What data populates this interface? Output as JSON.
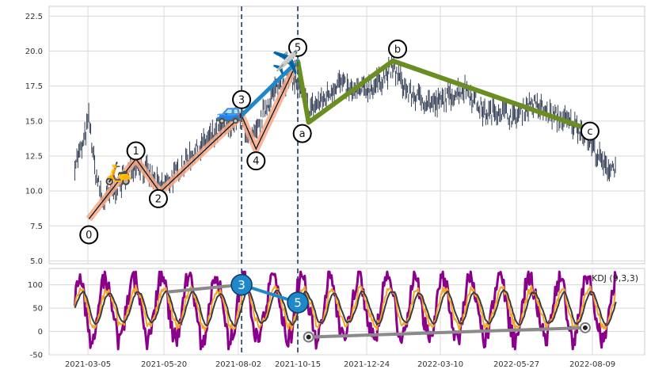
{
  "chart_data": [
    {
      "type": "candlestick",
      "title": "",
      "ylim": [
        4.8,
        23.2
      ],
      "y_ticks": [
        "5.0",
        "7.5",
        "10.0",
        "12.5",
        "15.0",
        "17.5",
        "20.0",
        "22.5"
      ],
      "x_ticks": [
        "2021-03-05",
        "2021-05-20",
        "2021-08-02",
        "2021-10-15",
        "2021-12-24",
        "2022-03-10",
        "2022-05-27",
        "2022-08-09"
      ],
      "grid": true,
      "candle_color": "#1f2a44",
      "price_path": [
        [
          "2021-02-20",
          12.0
        ],
        [
          "2021-02-28",
          13.2
        ],
        [
          "2021-03-06",
          15.2
        ],
        [
          "2021-03-12",
          11.5
        ],
        [
          "2021-03-20",
          9.2
        ],
        [
          "2021-03-28",
          9.8
        ],
        [
          "2021-04-10",
          10.8
        ],
        [
          "2021-04-22",
          12.2
        ],
        [
          "2021-05-05",
          11.2
        ],
        [
          "2021-05-16",
          10.2
        ],
        [
          "2021-05-30",
          11.0
        ],
        [
          "2021-06-15",
          12.5
        ],
        [
          "2021-07-01",
          13.5
        ],
        [
          "2021-07-15",
          14.3
        ],
        [
          "2021-07-28",
          14.8
        ],
        [
          "2021-08-06",
          15.3
        ],
        [
          "2021-08-16",
          13.5
        ],
        [
          "2021-08-24",
          14.0
        ],
        [
          "2021-09-05",
          16.0
        ],
        [
          "2021-09-20",
          17.5
        ],
        [
          "2021-10-05",
          18.2
        ],
        [
          "2021-10-12",
          17.8
        ],
        [
          "2021-10-20",
          17.0
        ],
        [
          "2021-10-26",
          15.8
        ],
        [
          "2021-11-10",
          16.5
        ],
        [
          "2021-11-25",
          17.8
        ],
        [
          "2021-12-10",
          17.0
        ],
        [
          "2022-01-01",
          17.5
        ],
        [
          "2022-01-20",
          18.8
        ],
        [
          "2022-02-05",
          17.0
        ],
        [
          "2022-02-20",
          16.5
        ],
        [
          "2022-03-05",
          16.2
        ],
        [
          "2022-03-20",
          16.8
        ],
        [
          "2022-04-05",
          17.4
        ],
        [
          "2022-04-25",
          15.5
        ],
        [
          "2022-05-10",
          15.8
        ],
        [
          "2022-05-25",
          15.2
        ],
        [
          "2022-06-10",
          16.3
        ],
        [
          "2022-07-01",
          15.4
        ],
        [
          "2022-07-20",
          14.8
        ],
        [
          "2022-08-02",
          14.2
        ],
        [
          "2022-08-12",
          12.8
        ],
        [
          "2022-08-22",
          11.6
        ],
        [
          "2022-09-01",
          11.8
        ]
      ],
      "wave_points": [
        {
          "label": "0",
          "date": "2021-03-06",
          "price": 8.0
        },
        {
          "label": "1",
          "date": "2021-04-22",
          "price": 12.3
        },
        {
          "label": "2",
          "date": "2021-05-16",
          "price": 9.9
        },
        {
          "label": "3",
          "date": "2021-08-06",
          "price": 15.4
        },
        {
          "label": "4",
          "date": "2021-08-24",
          "price": 13.0
        },
        {
          "label": "5",
          "date": "2021-10-15",
          "price": 19.3
        },
        {
          "label": "a",
          "date": "2021-10-26",
          "price": 14.9
        },
        {
          "label": "b",
          "date": "2022-01-20",
          "price": 19.3
        },
        {
          "label": "c",
          "date": "2022-08-02",
          "price": 14.5
        }
      ],
      "impulse_color": "#f4a98a",
      "corrective_color": "#6b8e23",
      "extension_color": "#1e88c8",
      "vlines": [
        "2021-08-06",
        "2021-10-15"
      ],
      "vline_color": "#4a6078",
      "icons": [
        {
          "name": "scooter",
          "glyph": "🛵",
          "date": "2021-04-04",
          "price": 11.3
        },
        {
          "name": "car",
          "glyph": "🚙",
          "date": "2021-07-24",
          "price": 15.7
        },
        {
          "name": "airplane",
          "glyph": "✈️",
          "date": "2021-09-30",
          "price": 19.2
        }
      ]
    },
    {
      "type": "line",
      "label": "KDJ (9,3,3)",
      "ylim": [
        -50,
        135
      ],
      "y_ticks": [
        "-50",
        "0",
        "50",
        "100"
      ],
      "grid": true,
      "series": [
        {
          "name": "K",
          "color": "#f5a623",
          "width": 2
        },
        {
          "name": "D",
          "color": "#3b3b3b",
          "width": 2
        },
        {
          "name": "J",
          "color": "#8b008b",
          "width": 3
        }
      ],
      "divergence_bear": {
        "color": "#8a8a8a",
        "points": [
          [
            "2021-05-25",
            85
          ],
          [
            "2021-08-06",
            100
          ],
          [
            "2021-10-15",
            62
          ]
        ]
      },
      "divergence_bull": {
        "color": "#8a8a8a",
        "points": [
          [
            "2021-10-26",
            -12
          ],
          [
            "2022-08-02",
            8
          ]
        ]
      },
      "bear_labels": [
        "3",
        "5"
      ],
      "marker_fill": "#1e88c8"
    }
  ]
}
